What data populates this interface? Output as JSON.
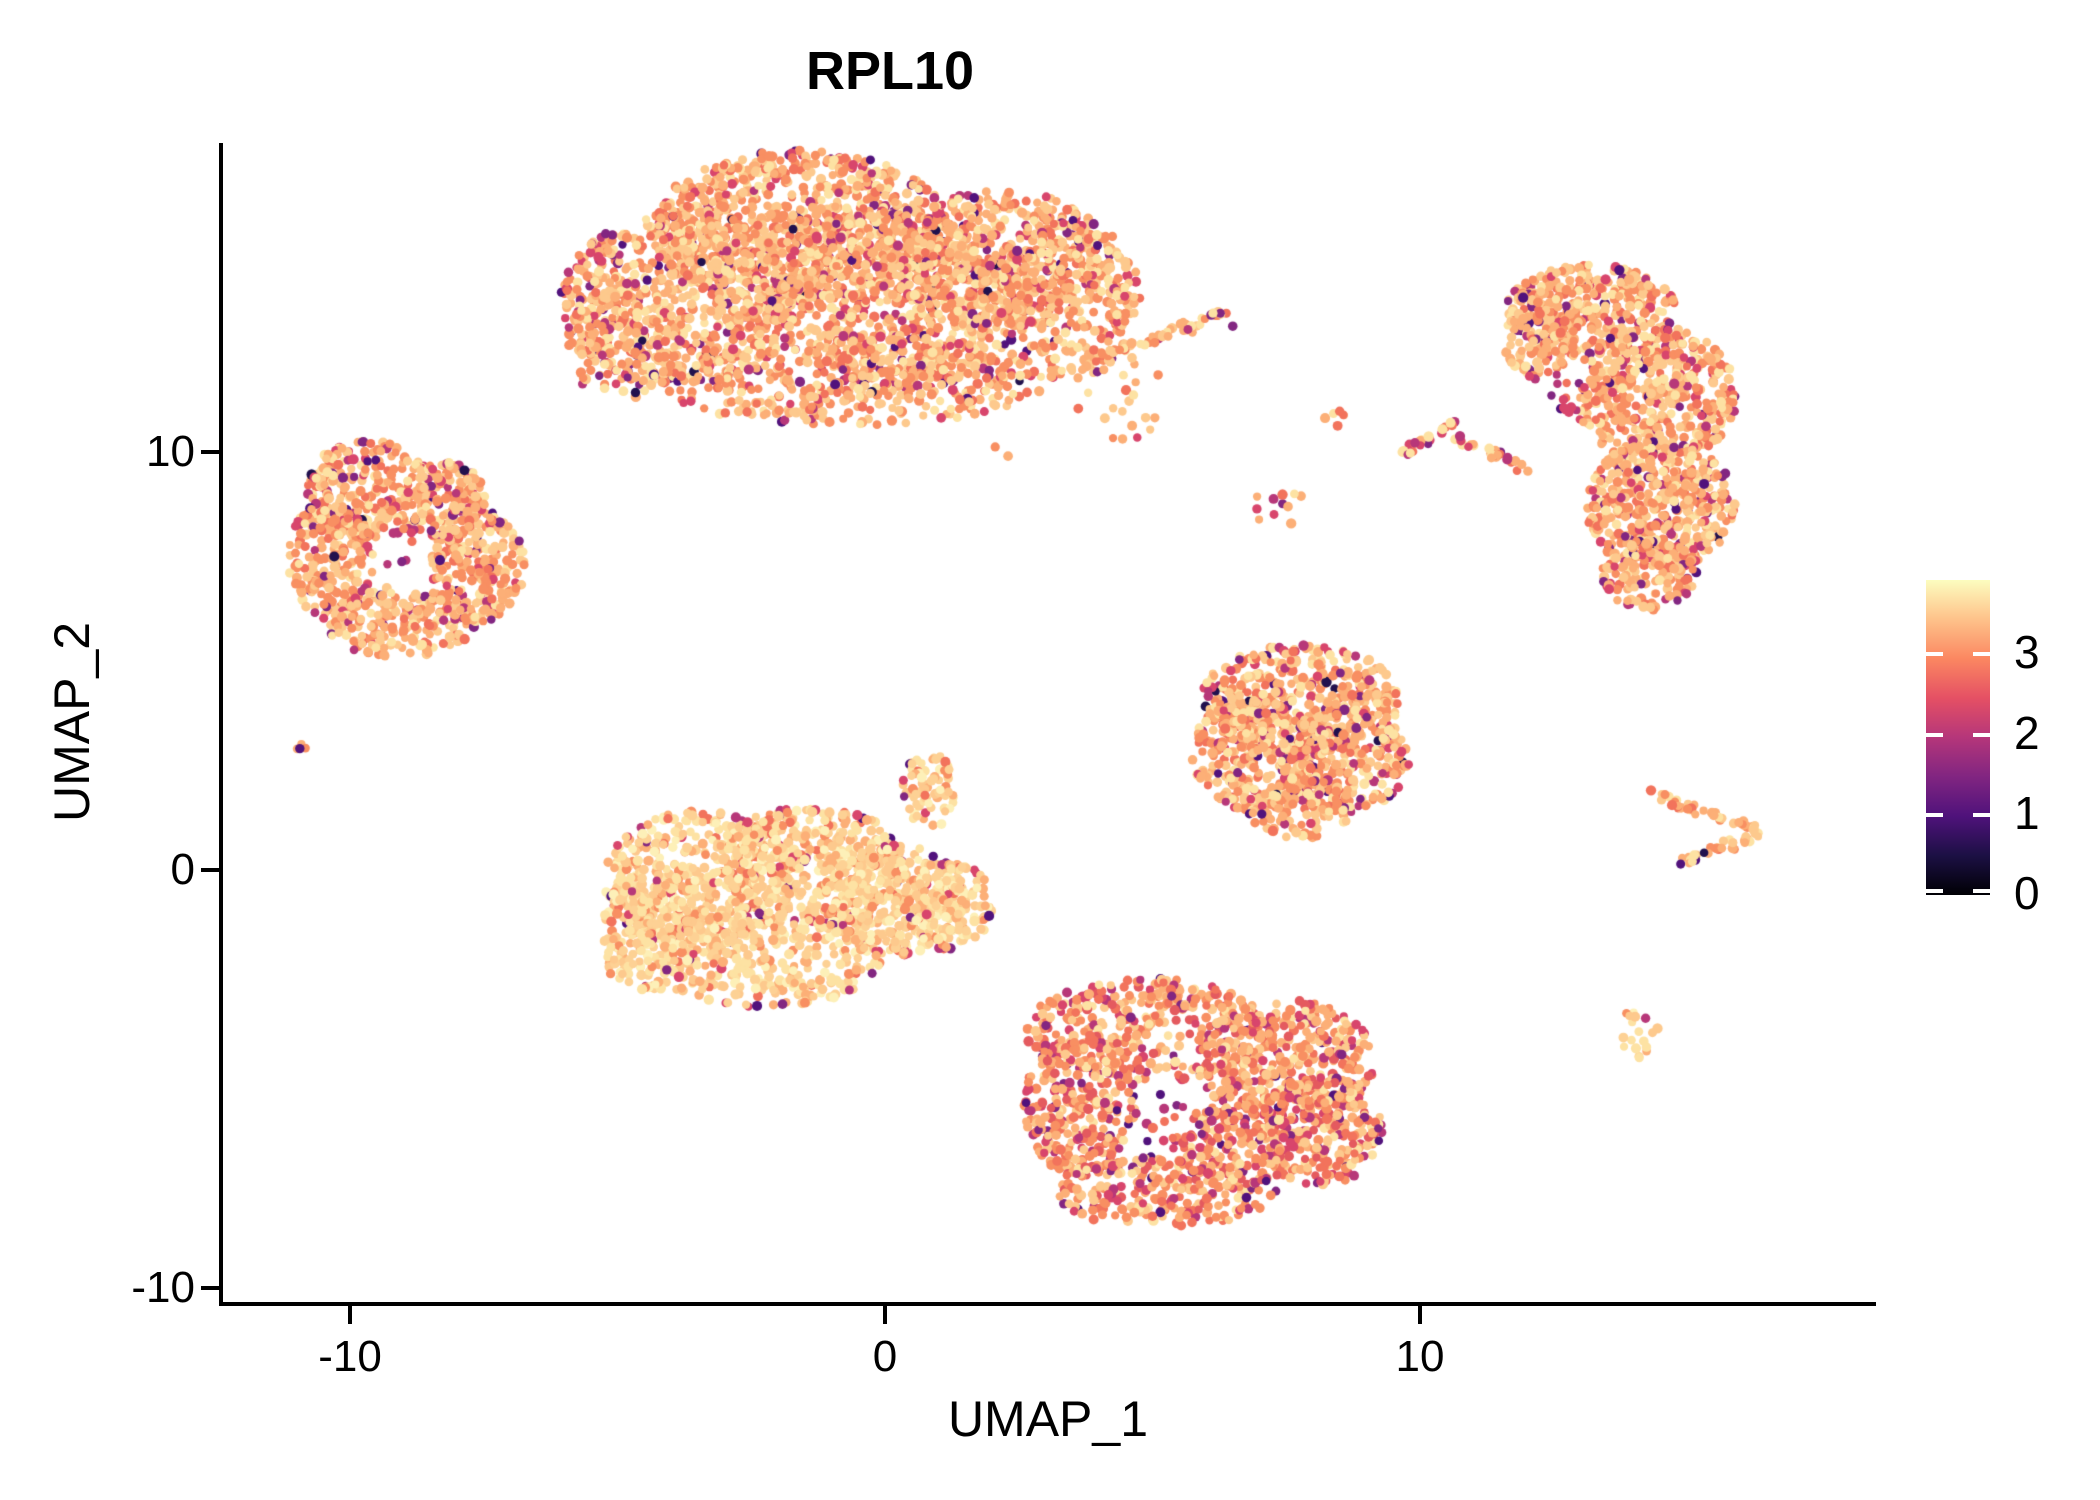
{
  "chart_data": {
    "type": "scatter",
    "title": "RPL10",
    "xlabel": "UMAP_1",
    "ylabel": "UMAP_2",
    "x_tick_labels": [
      "-10",
      "0",
      "10"
    ],
    "y_tick_labels": [
      "10",
      "0",
      "-10"
    ],
    "x_tick_values": [
      -10,
      0,
      10
    ],
    "y_tick_values": [
      10,
      0,
      -10
    ],
    "xlim": [
      -12.4,
      18.5
    ],
    "ylim": [
      -10.35,
      17.4
    ],
    "grid": false,
    "background": "#ffffff",
    "point_shape": "filled-circle",
    "point_radius_px": 4.6,
    "seed": 7,
    "colorbar": {
      "tick_labels": [
        "3",
        "2",
        "1",
        "0"
      ],
      "tick_values": [
        3,
        2,
        1,
        0
      ],
      "value_range": [
        0,
        3.9
      ],
      "colormap_name": "magma",
      "stops_bottom_to_top": [
        "#000004",
        "#1c1044",
        "#4f127b",
        "#812581",
        "#b5367a",
        "#e55064",
        "#fb8761",
        "#fec28a",
        "#fcfdbf"
      ]
    },
    "palettes": {
      "standard": {
        "colors": [
          "#fde2a3",
          "#fdc98d",
          "#fcaf77",
          "#f88f62",
          "#f2735c",
          "#d8456c",
          "#b73779",
          "#822681",
          "#51127c",
          "#21114e"
        ],
        "weights": [
          0.14,
          0.22,
          0.24,
          0.2,
          0.09,
          0.045,
          0.03,
          0.02,
          0.01,
          0.005
        ]
      },
      "bright": {
        "colors": [
          "#fdf0b8",
          "#fde2a3",
          "#fdd194",
          "#fdc98d",
          "#fcaf77",
          "#f88f62",
          "#f2735c",
          "#d8456c",
          "#b73779",
          "#822681"
        ],
        "weights": [
          0.1,
          0.24,
          0.22,
          0.18,
          0.14,
          0.07,
          0.03,
          0.01,
          0.005,
          0.005
        ]
      },
      "magenta": {
        "colors": [
          "#fde2a3",
          "#fdc98d",
          "#fcaf77",
          "#f88f62",
          "#f2735c",
          "#e45a5f",
          "#d8456c",
          "#b73779",
          "#822681",
          "#51127c"
        ],
        "weights": [
          0.07,
          0.14,
          0.2,
          0.22,
          0.13,
          0.09,
          0.07,
          0.05,
          0.02,
          0.01
        ]
      },
      "mixhole": {
        "colors": [
          "#fcaf77",
          "#f2735c",
          "#d8456c",
          "#b73779",
          "#822681",
          "#51127c"
        ],
        "weights": [
          0.15,
          0.2,
          0.25,
          0.2,
          0.12,
          0.08
        ]
      },
      "hmix": {
        "colors": [
          "#fde2a3",
          "#fcaf77",
          "#f2735c",
          "#d8456c",
          "#b73779",
          "#822681"
        ],
        "weights": [
          0.2,
          0.25,
          0.15,
          0.15,
          0.15,
          0.1
        ]
      },
      "dspec": {
        "colors": [
          "#f88f62",
          "#fcaf77",
          "#51127c"
        ],
        "weights": [
          0.4,
          0.3,
          0.3
        ]
      }
    },
    "clusters": [
      {
        "name": "top-center-main",
        "palette": "standard",
        "ellipses": [
          [
            -1.59,
            15.31,
            2.8,
            1.91,
            900
          ],
          [
            -3.83,
            13.64,
            2.24,
            2.03,
            600
          ],
          [
            0.28,
            13.64,
            2.43,
            2.15,
            700
          ],
          [
            2.15,
            14.59,
            2.06,
            1.67,
            450
          ],
          [
            3.46,
            13.64,
            1.31,
            1.91,
            300
          ],
          [
            -0.65,
            11.72,
            3.74,
            1.08,
            400
          ],
          [
            -4.95,
            12.68,
            1.12,
            1.44,
            150
          ],
          [
            4.39,
            11.48,
            0.84,
            1.32,
            22
          ]
        ],
        "segments": [
          [
            4.11,
            12.32,
            6.45,
            13.35,
            0.17,
            55
          ]
        ]
      },
      {
        "name": "top-right-crescent",
        "palette": "standard",
        "ellipses": [
          [
            13.18,
            13.4,
            1.59,
            1.08,
            330
          ],
          [
            12.24,
            12.8,
            0.71,
            1.08,
            120
          ],
          [
            14.39,
            11.36,
            1.53,
            1.67,
            480
          ],
          [
            14.49,
            8.73,
            1.4,
            1.56,
            430
          ],
          [
            14.3,
            7.06,
            0.9,
            0.84,
            130
          ]
        ]
      },
      {
        "name": "top-right-dark-notch",
        "palette": "mixhole",
        "ellipses": [
          [
            12.58,
            11.24,
            0.28,
            0.55,
            10
          ]
        ]
      },
      {
        "name": "left-ring",
        "palette": "standard",
        "ellipses": [
          [
            -9.63,
            9.09,
            1.21,
            1.2,
            260
          ],
          [
            -10.37,
            7.42,
            0.8,
            1.44,
            200
          ],
          [
            -9.07,
            5.93,
            1.4,
            0.84,
            190
          ],
          [
            -7.63,
            7.3,
            0.9,
            1.39,
            230
          ],
          [
            -8.22,
            8.85,
            0.75,
            0.91,
            140
          ]
        ]
      },
      {
        "name": "left-ring-hole-dots",
        "palette": "mixhole",
        "ellipses": [
          [
            -8.82,
            7.61,
            0.52,
            0.77,
            9
          ]
        ]
      },
      {
        "name": "left-tiny-doublet",
        "palette": "dspec",
        "ellipses": [
          [
            -10.84,
            3.02,
            0.18,
            0.22,
            4
          ]
        ]
      },
      {
        "name": "center-left-bright",
        "palette": "bright",
        "ellipses": [
          [
            -3.46,
            -0.24,
            1.78,
            1.67,
            480
          ],
          [
            -1.4,
            0.12,
            1.78,
            1.44,
            430
          ],
          [
            0.19,
            -0.72,
            1.31,
            1.32,
            330
          ],
          [
            1.21,
            -0.84,
            0.79,
            1.08,
            140
          ],
          [
            -2.24,
            -2.15,
            2.15,
            1.15,
            300
          ],
          [
            0.84,
            1.91,
            0.52,
            0.91,
            70
          ],
          [
            -4.43,
            -1.56,
            0.97,
            1.39,
            190
          ]
        ]
      },
      {
        "name": "center-right-triangle",
        "palette": "standard",
        "ellipses": [
          [
            7.76,
            4.07,
            1.87,
            1.32,
            430
          ],
          [
            6.92,
            2.75,
            1.21,
            1.32,
            280
          ],
          [
            8.6,
            2.63,
            1.21,
            1.2,
            260
          ],
          [
            7.76,
            1.48,
            0.97,
            0.72,
            110
          ]
        ]
      },
      {
        "name": "bottom-center",
        "palette": "magenta",
        "ellipses": [
          [
            4.95,
            -3.83,
            2.34,
            1.24,
            330
          ],
          [
            7.48,
            -4.55,
            1.68,
            1.44,
            380
          ],
          [
            8.13,
            -6.22,
            1.16,
            1.32,
            260
          ],
          [
            3.64,
            -5.62,
            1.03,
            1.72,
            280
          ],
          [
            5.23,
            -7.7,
            2.09,
            0.86,
            240
          ],
          [
            6.54,
            -6.58,
            1.16,
            1.0,
            150
          ]
        ]
      },
      {
        "name": "bottom-center-hole-dots",
        "palette": "mixhole",
        "ellipses": [
          [
            5.29,
            -6.05,
            1.08,
            0.96,
            26
          ]
        ]
      },
      {
        "name": "small-chevron-streak",
        "palette": "hmix",
        "ellipses": [
          [
            8.5,
            10.86,
            0.28,
            0.26,
            6
          ],
          [
            7.48,
            8.56,
            0.71,
            0.62,
            11
          ]
        ],
        "segments": [
          [
            9.57,
            9.88,
            10.6,
            10.67,
            0.15,
            22
          ],
          [
            10.65,
            10.36,
            11.96,
            9.57,
            0.15,
            26
          ]
        ]
      },
      {
        "name": "right-wedge",
        "palette": "standard",
        "segments": [
          [
            14.39,
            1.79,
            16.32,
            0.96,
            0.16,
            40
          ],
          [
            16.28,
            0.81,
            14.86,
            0.19,
            0.15,
            30
          ]
        ]
      },
      {
        "name": "right-tiny-blob",
        "palette": "bright",
        "ellipses": [
          [
            14.15,
            -3.83,
            0.45,
            0.7,
            18
          ]
        ]
      }
    ],
    "singles": [
      [
        6.5,
        13.01,
        "#822681"
      ],
      [
        6.13,
        13.32,
        "#fde2a3"
      ],
      [
        2.06,
        10.12,
        "#f88f62"
      ],
      [
        2.3,
        9.9,
        "#fcaf77"
      ]
    ]
  }
}
